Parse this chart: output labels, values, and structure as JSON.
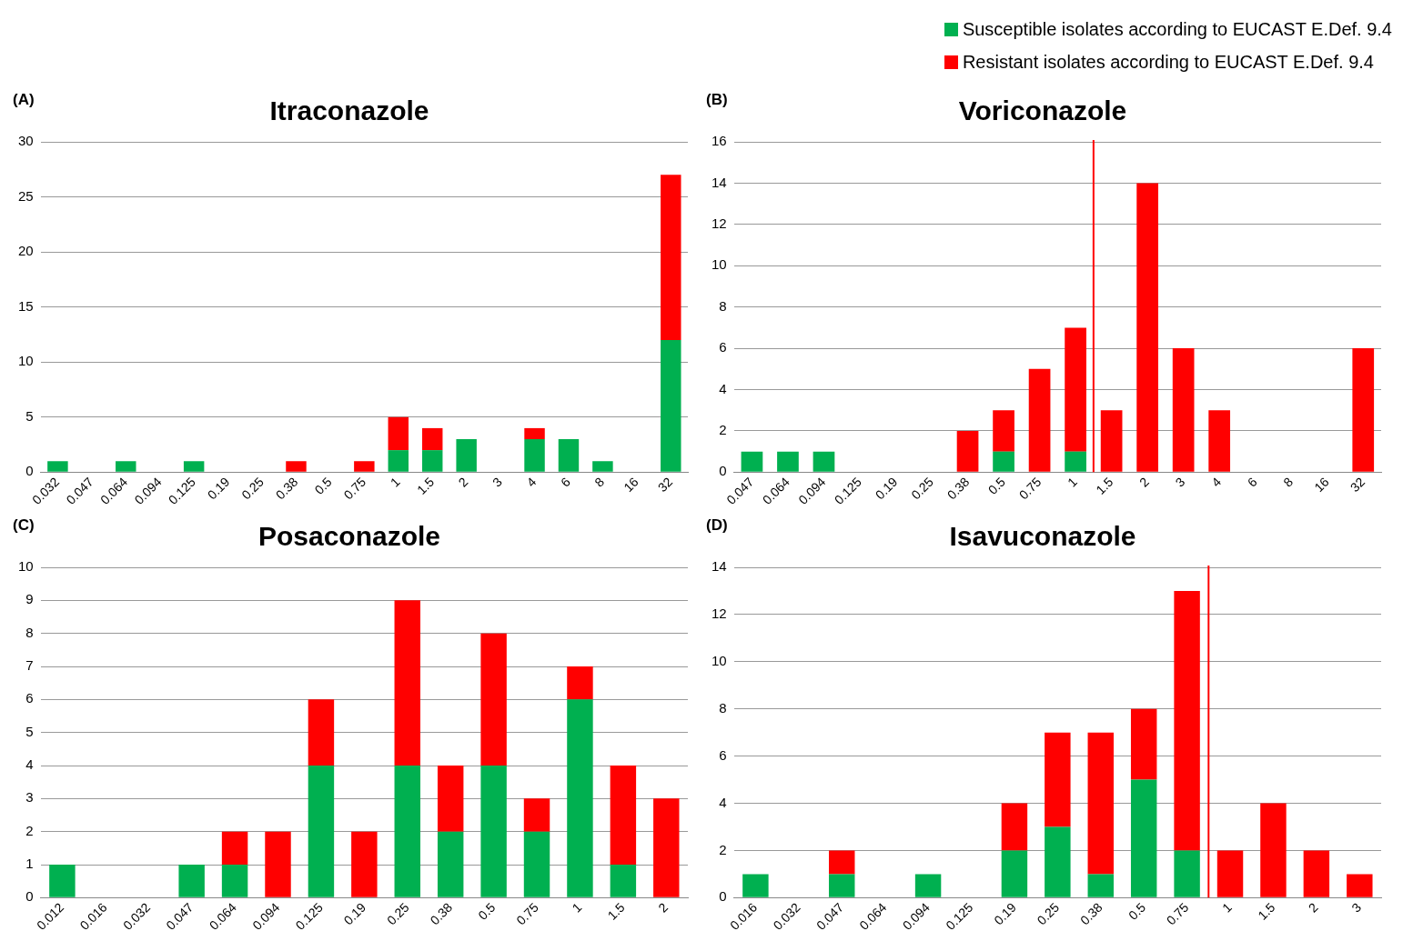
{
  "chart_data": [
    {
      "type": "bar",
      "title": "Itraconazole",
      "annotations": [
        "(A)"
      ],
      "stacked": true,
      "grid": "y",
      "legend": "top right",
      "categories": [
        "0.032",
        "0.047",
        "0.064",
        "0.094",
        "0.125",
        "0.19",
        "0.25",
        "0.38",
        "0.5",
        "0.75",
        "1",
        "1.5",
        "2",
        "3",
        "4",
        "6",
        "8",
        "16",
        "32"
      ],
      "ylim": [
        0,
        30
      ],
      "yticks": [
        0,
        5,
        10,
        15,
        20,
        25,
        30
      ],
      "series": [
        {
          "name": "Susceptible isolates according to EUCAST E.Def. 9.4",
          "color": "#00b050",
          "values": [
            1,
            0,
            1,
            0,
            1,
            0,
            0,
            0,
            0,
            0,
            2,
            2,
            3,
            0,
            3,
            3,
            1,
            0,
            12
          ]
        },
        {
          "name": "Resistant isolates according to EUCAST E.Def. 9.4",
          "color": "#ff0000",
          "values": [
            0,
            0,
            0,
            0,
            0,
            0,
            0,
            1,
            0,
            1,
            3,
            2,
            0,
            0,
            1,
            0,
            0,
            0,
            15
          ]
        }
      ]
    },
    {
      "type": "bar",
      "title": "Voriconazole",
      "annotations": [
        "(B)"
      ],
      "stacked": true,
      "grid": "y",
      "categories": [
        "0.047",
        "0.064",
        "0.094",
        "0.125",
        "0.19",
        "0.25",
        "0.38",
        "0.5",
        "0.75",
        "1",
        "1.5",
        "2",
        "3",
        "4",
        "6",
        "8",
        "16",
        "32"
      ],
      "ylim": [
        0,
        16
      ],
      "yticks": [
        0,
        2,
        4,
        6,
        8,
        10,
        12,
        14,
        16
      ],
      "ref_lines": [
        {
          "axis": "x",
          "value": "1",
          "color": "#ff0000"
        }
      ],
      "series": [
        {
          "color": "#00b050",
          "values": [
            1,
            1,
            1,
            0,
            0,
            0,
            0,
            1,
            0,
            1,
            0,
            0,
            0,
            0,
            0,
            0,
            0,
            0
          ]
        },
        {
          "color": "#ff0000",
          "values": [
            0,
            0,
            0,
            0,
            0,
            0,
            2,
            2,
            5,
            6,
            3,
            14,
            6,
            3,
            0,
            0,
            0,
            6
          ]
        }
      ]
    },
    {
      "type": "bar",
      "title": "Posaconazole",
      "annotations": [
        "(C)"
      ],
      "stacked": true,
      "grid": "y",
      "categories": [
        "0.012",
        "0.016",
        "0.032",
        "0.047",
        "0.064",
        "0.094",
        "0.125",
        "0.19",
        "0.25",
        "0.38",
        "0.5",
        "0.75",
        "1",
        "1.5",
        "2"
      ],
      "ylim": [
        0,
        10
      ],
      "yticks": [
        0,
        1,
        2,
        3,
        4,
        5,
        6,
        7,
        8,
        9,
        10
      ],
      "series": [
        {
          "color": "#00b050",
          "values": [
            1,
            0,
            0,
            1,
            1,
            0,
            4,
            0,
            4,
            2,
            4,
            2,
            6,
            1,
            0
          ]
        },
        {
          "color": "#ff0000",
          "values": [
            0,
            0,
            0,
            0,
            1,
            2,
            2,
            2,
            5,
            2,
            4,
            1,
            1,
            3,
            3
          ]
        }
      ]
    },
    {
      "type": "bar",
      "title": "Isavuconazole",
      "annotations": [
        "(D)"
      ],
      "stacked": true,
      "grid": "y",
      "categories": [
        "0.016",
        "0.032",
        "0.047",
        "0.064",
        "0.094",
        "0.125",
        "0.19",
        "0.25",
        "0.38",
        "0.5",
        "0.75",
        "1",
        "1.5",
        "2",
        "3"
      ],
      "ylim": [
        0,
        14
      ],
      "yticks": [
        0,
        2,
        4,
        6,
        8,
        10,
        12,
        14
      ],
      "ref_lines": [
        {
          "axis": "x",
          "value": "0.75",
          "color": "#ff0000"
        }
      ],
      "series": [
        {
          "color": "#00b050",
          "values": [
            1,
            0,
            1,
            0,
            1,
            0,
            2,
            3,
            1,
            5,
            2,
            0,
            0,
            0,
            0
          ]
        },
        {
          "color": "#ff0000",
          "values": [
            0,
            0,
            1,
            0,
            0,
            0,
            2,
            4,
            6,
            3,
            11,
            2,
            4,
            2,
            1
          ]
        }
      ]
    }
  ]
}
